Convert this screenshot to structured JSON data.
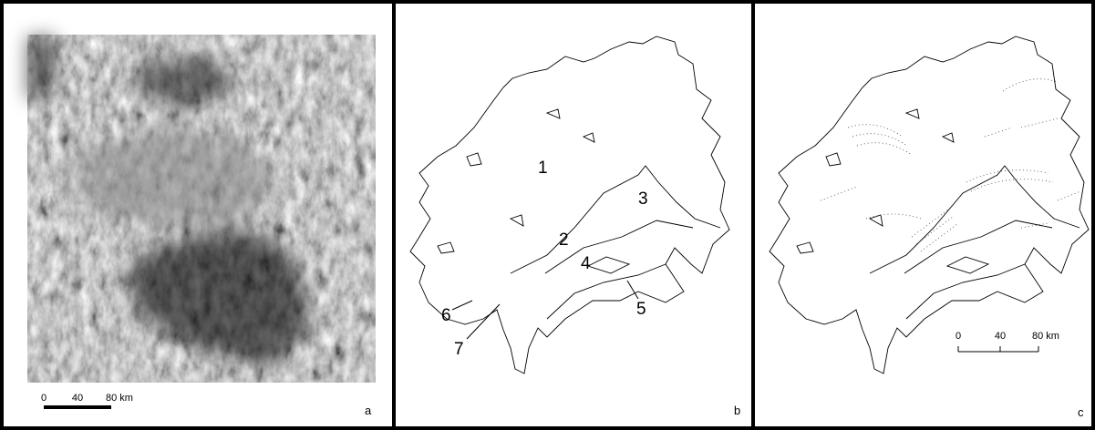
{
  "panels": [
    {
      "letter": "a",
      "scale": {
        "ticks": [
          "0",
          "40",
          "80 km"
        ]
      }
    },
    {
      "letter": "b",
      "units": [
        "1",
        "2",
        "3",
        "4",
        "5",
        "6",
        "7"
      ]
    },
    {
      "letter": "c",
      "scale": {
        "ticks": [
          "0",
          "40",
          "80 km"
        ]
      }
    }
  ]
}
